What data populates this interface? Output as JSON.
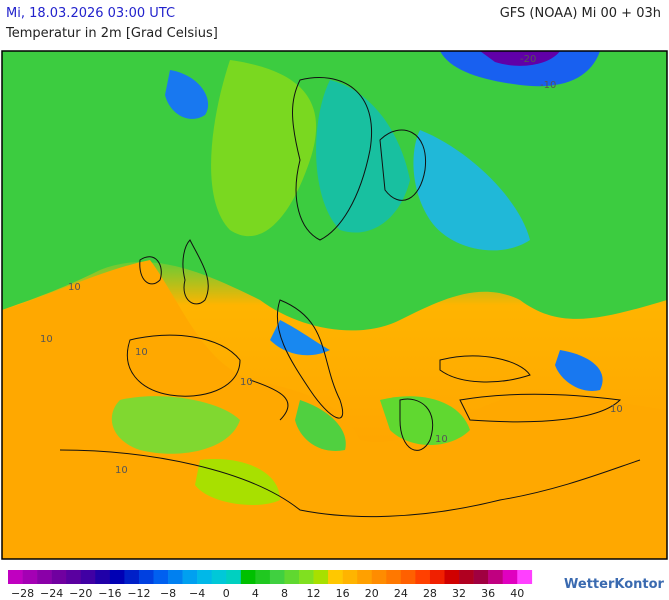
{
  "header": {
    "date": "Mi, 18.03.2026 03:00 UTC",
    "model": "GFS (NOAA) Mi 00 + 03h",
    "subtitle": "Temperatur in 2m [Grad Celsius]"
  },
  "map": {
    "contour_labels": [
      "-20",
      "-10",
      "10",
      "10",
      "10",
      "10",
      "10",
      "10",
      "10"
    ]
  },
  "legend": {
    "colors": [
      "#c000c0",
      "#a400b4",
      "#8a00a8",
      "#7000a0",
      "#5a00a0",
      "#4000a4",
      "#2000a8",
      "#0000b4",
      "#0020c8",
      "#0040e0",
      "#0060f0",
      "#0080f0",
      "#00a0f0",
      "#00b8e8",
      "#00c8d8",
      "#00d0c0",
      "#00c000",
      "#20c820",
      "#40d040",
      "#60d830",
      "#80e020",
      "#a8e000",
      "#ffc800",
      "#ffb400",
      "#ffa000",
      "#ff8c00",
      "#ff7800",
      "#ff6000",
      "#ff4000",
      "#f02000",
      "#d00000",
      "#b00020",
      "#a00040",
      "#c00080",
      "#e000c0",
      "#ff40ff"
    ],
    "labels": [
      "−28",
      "−24",
      "−20",
      "−16",
      "−12",
      "−8",
      "−4",
      "0",
      "4",
      "8",
      "12",
      "16",
      "20",
      "24",
      "28",
      "32",
      "36",
      "40"
    ]
  },
  "logo": "WetterKontor"
}
